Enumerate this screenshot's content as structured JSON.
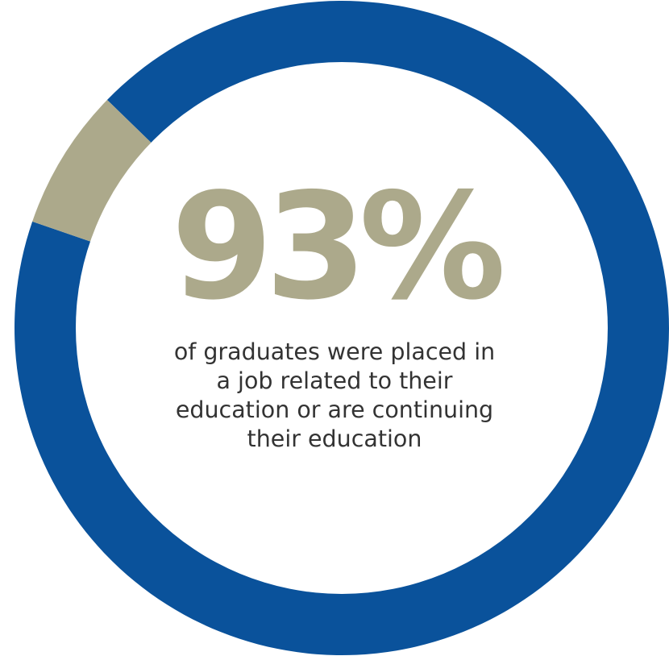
{
  "chart_data": {
    "type": "pie",
    "variant": "donut",
    "slices": [
      {
        "value": 93,
        "color": "#0A529B"
      },
      {
        "value": 7,
        "color": "#ACA98B"
      }
    ],
    "center_value": "93%",
    "center_caption": "of graduates were placed in\na job related to their\neducation or are continuing\ntheir education"
  },
  "colors": {
    "primary": "#0A529B",
    "accent": "#ACA98B",
    "text": "#333333",
    "inner": "#FFFFFF"
  }
}
